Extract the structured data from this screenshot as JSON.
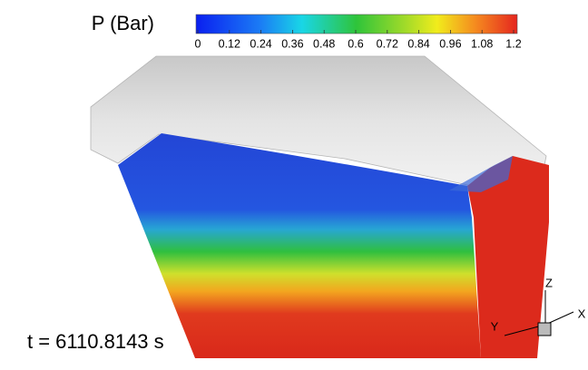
{
  "legend": {
    "title": "P (Bar)",
    "range": [
      0,
      1.2
    ],
    "ticks": [
      0,
      0.12,
      0.24,
      0.36,
      0.48,
      0.6,
      0.72,
      0.84,
      0.96,
      1.08,
      1.2
    ]
  },
  "time_label": "t = 6110.8143 s",
  "axes": {
    "x": "X",
    "y": "Y",
    "z": "Z"
  }
}
